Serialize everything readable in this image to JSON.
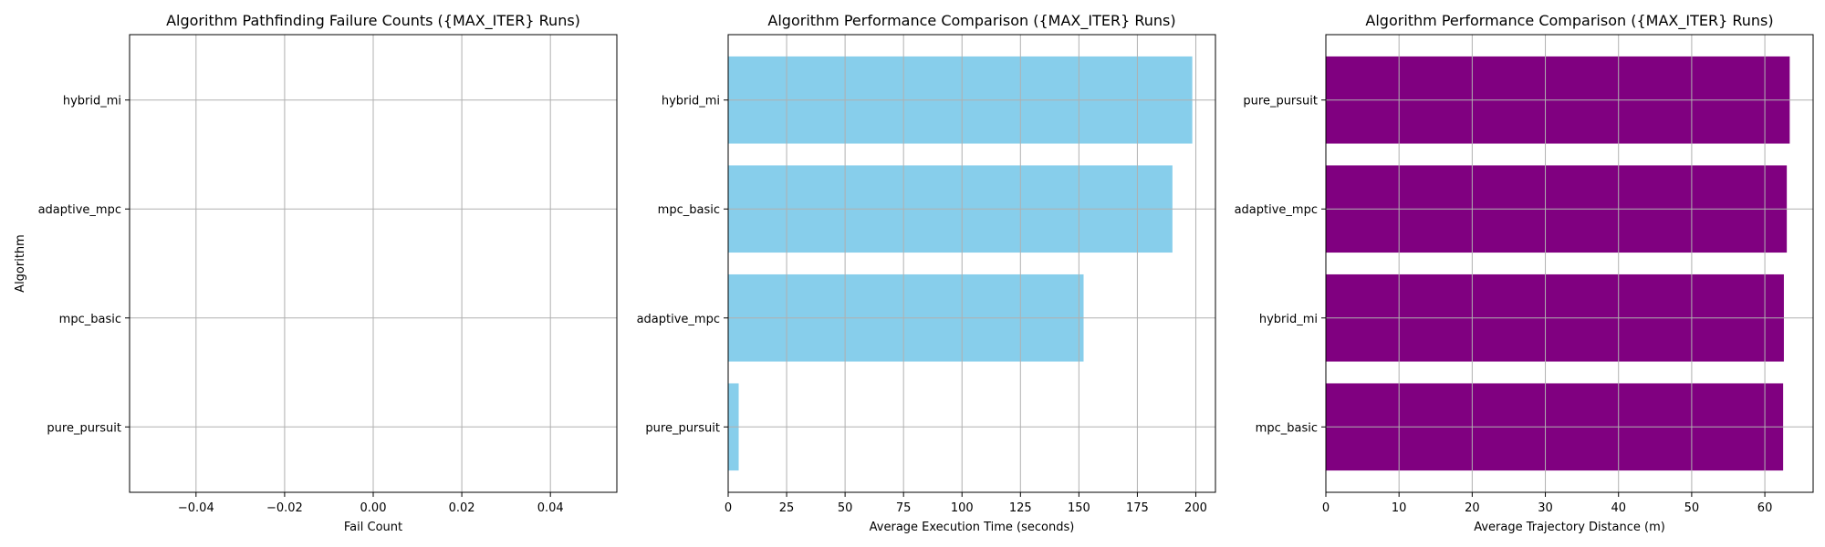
{
  "chart_data": [
    {
      "type": "bar",
      "orientation": "horizontal",
      "title": "Algorithm Pathfinding Failure Counts ({MAX_ITER} Runs)",
      "xlabel": "Fail Count",
      "ylabel": "Algorithm",
      "categories": [
        "pure_pursuit",
        "mpc_basic",
        "adaptive_mpc",
        "hybrid_mi"
      ],
      "values": [
        0,
        0,
        0,
        0
      ],
      "xlim": [
        -0.055,
        0.055
      ],
      "xticks": [
        -0.04,
        -0.02,
        0.0,
        0.02,
        0.04
      ],
      "xtick_labels": [
        "−0.04",
        "−0.02",
        "0.00",
        "0.02",
        "0.04"
      ],
      "color": "#87ceeb",
      "grid": true
    },
    {
      "type": "bar",
      "orientation": "horizontal",
      "title": "Algorithm Performance Comparison ({MAX_ITER} Runs)",
      "xlabel": "Average Execution Time (seconds)",
      "ylabel": "",
      "categories": [
        "pure_pursuit",
        "adaptive_mpc",
        "mpc_basic",
        "hybrid_mi"
      ],
      "values": [
        4.5,
        152,
        190,
        198.5
      ],
      "xlim": [
        0,
        208.4
      ],
      "xticks": [
        0,
        25,
        50,
        75,
        100,
        125,
        150,
        175,
        200
      ],
      "xtick_labels": [
        "0",
        "25",
        "50",
        "75",
        "100",
        "125",
        "150",
        "175",
        "200"
      ],
      "color": "#87ceeb",
      "grid": true
    },
    {
      "type": "bar",
      "orientation": "horizontal",
      "title": "Algorithm Performance Comparison ({MAX_ITER} Runs)",
      "xlabel": "Average Trajectory Distance (m)",
      "ylabel": "",
      "categories": [
        "mpc_basic",
        "hybrid_mi",
        "adaptive_mpc",
        "pure_pursuit"
      ],
      "values": [
        62.5,
        62.6,
        63.0,
        63.4
      ],
      "xlim": [
        0,
        66.6
      ],
      "xticks": [
        0,
        10,
        20,
        30,
        40,
        50,
        60
      ],
      "xtick_labels": [
        "0",
        "10",
        "20",
        "30",
        "40",
        "50",
        "60"
      ],
      "color": "#800080",
      "grid": true
    }
  ]
}
